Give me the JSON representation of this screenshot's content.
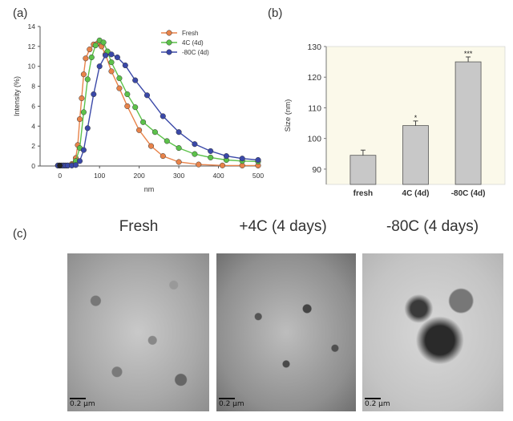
{
  "panels": {
    "a": "(a)",
    "b": "(b)",
    "c": "(c)"
  },
  "chart_data": [
    {
      "type": "line",
      "title": "",
      "xlabel": "nm",
      "ylabel": "Intensity (%)",
      "xlim": [
        -50,
        500
      ],
      "ylim": [
        0,
        14
      ],
      "xticks": [
        "0",
        "100",
        "200",
        "300",
        "400",
        "500"
      ],
      "yticks": [
        "0",
        "2",
        "4",
        "6",
        "8",
        "10",
        "12",
        "14"
      ],
      "legend_position": "top-right",
      "series": [
        {
          "name": "Fresh",
          "color": "#e8834a",
          "points": [
            [
              -5,
              0.05
            ],
            [
              0,
              0.05
            ],
            [
              5,
              0.05
            ],
            [
              10,
              0.05
            ],
            [
              15,
              0.05
            ],
            [
              20,
              0.05
            ],
            [
              30,
              0.2
            ],
            [
              40,
              0.8
            ],
            [
              45,
              2.1
            ],
            [
              50,
              4.7
            ],
            [
              55,
              6.8
            ],
            [
              60,
              9.2
            ],
            [
              65,
              10.8
            ],
            [
              75,
              11.7
            ],
            [
              85,
              12.2
            ],
            [
              95,
              12.3
            ],
            [
              105,
              12.0
            ],
            [
              115,
              11.2
            ],
            [
              130,
              9.5
            ],
            [
              150,
              7.8
            ],
            [
              170,
              6.0
            ],
            [
              200,
              3.6
            ],
            [
              230,
              2.0
            ],
            [
              260,
              1.0
            ],
            [
              300,
              0.4
            ],
            [
              350,
              0.15
            ],
            [
              410,
              0.06
            ],
            [
              460,
              0.05
            ],
            [
              500,
              0.05
            ]
          ]
        },
        {
          "name": "4C (4d)",
          "color": "#5cc24a",
          "points": [
            [
              -5,
              0.05
            ],
            [
              0,
              0.05
            ],
            [
              5,
              0.05
            ],
            [
              10,
              0.05
            ],
            [
              15,
              0.05
            ],
            [
              20,
              0.05
            ],
            [
              30,
              0.1
            ],
            [
              40,
              0.5
            ],
            [
              50,
              1.8
            ],
            [
              60,
              5.4
            ],
            [
              70,
              8.7
            ],
            [
              80,
              10.9
            ],
            [
              90,
              12.1
            ],
            [
              100,
              12.6
            ],
            [
              110,
              12.4
            ],
            [
              120,
              11.5
            ],
            [
              130,
              10.4
            ],
            [
              150,
              8.8
            ],
            [
              170,
              7.2
            ],
            [
              190,
              5.9
            ],
            [
              210,
              4.4
            ],
            [
              240,
              3.4
            ],
            [
              270,
              2.5
            ],
            [
              300,
              1.8
            ],
            [
              340,
              1.2
            ],
            [
              380,
              0.85
            ],
            [
              420,
              0.6
            ],
            [
              460,
              0.5
            ],
            [
              500,
              0.45
            ]
          ]
        },
        {
          "name": "-80C (4d)",
          "color": "#3a48a8",
          "points": [
            [
              -5,
              0.05
            ],
            [
              0,
              0.05
            ],
            [
              5,
              0.05
            ],
            [
              10,
              0.05
            ],
            [
              15,
              0.05
            ],
            [
              20,
              0.05
            ],
            [
              30,
              0.05
            ],
            [
              40,
              0.1
            ],
            [
              50,
              0.5
            ],
            [
              60,
              1.6
            ],
            [
              70,
              3.8
            ],
            [
              85,
              7.2
            ],
            [
              100,
              10.0
            ],
            [
              115,
              11.1
            ],
            [
              130,
              11.2
            ],
            [
              145,
              10.9
            ],
            [
              165,
              10.1
            ],
            [
              190,
              8.6
            ],
            [
              220,
              7.1
            ],
            [
              260,
              5.0
            ],
            [
              300,
              3.4
            ],
            [
              340,
              2.2
            ],
            [
              380,
              1.5
            ],
            [
              420,
              1.0
            ],
            [
              460,
              0.75
            ],
            [
              500,
              0.6
            ]
          ]
        }
      ]
    },
    {
      "type": "bar",
      "title": "",
      "xlabel": "",
      "ylabel": "Size (nm)",
      "ylim": [
        85,
        130
      ],
      "yticks": [
        "90",
        "100",
        "110",
        "120",
        "130"
      ],
      "categories": [
        "fresh",
        "4C (4d)",
        "-80C (4d)"
      ],
      "values": [
        94.5,
        104.2,
        125.0
      ],
      "errors": [
        1.7,
        1.5,
        1.6
      ],
      "annotations": [
        "",
        "*",
        "***"
      ],
      "grid": false,
      "bar_color": "#c8c8c8",
      "plot_background": "#fbf9ea"
    }
  ],
  "em": {
    "titles": [
      "Fresh",
      "+4C (4 days)",
      "-80C (4 days)"
    ],
    "scale_label": "0.2 μm"
  }
}
